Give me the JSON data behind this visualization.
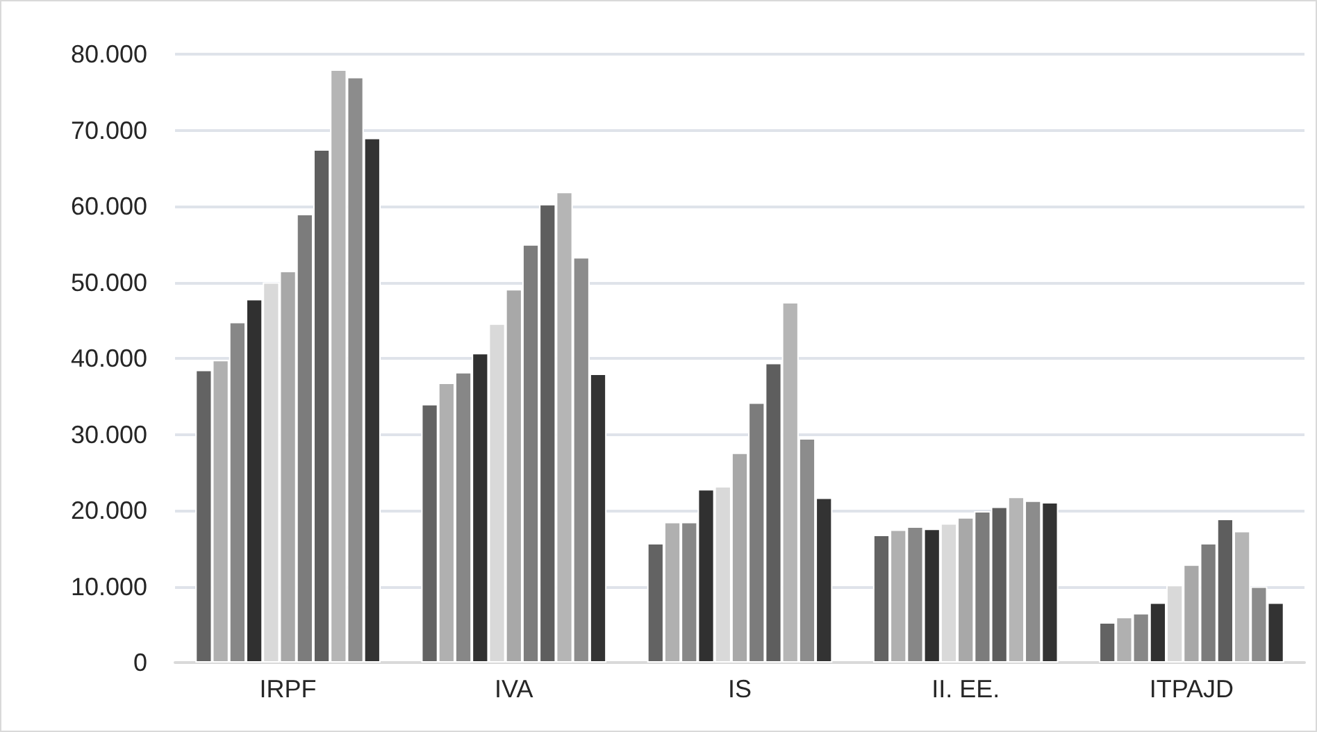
{
  "chart_data": {
    "type": "bar",
    "categories": [
      "IRPF",
      "IVA",
      "IS",
      "II. EE.",
      "ITPAJD"
    ],
    "series": [
      {
        "color": "#636363",
        "values": [
          38500,
          34000,
          15700,
          16800,
          5300
        ]
      },
      {
        "color": "#b0b0b0",
        "values": [
          39800,
          36800,
          18500,
          17500,
          6000
        ]
      },
      {
        "color": "#878787",
        "values": [
          44800,
          38200,
          18500,
          17900,
          6500
        ]
      },
      {
        "color": "#303030",
        "values": [
          47800,
          40700,
          22800,
          17600,
          7900
        ]
      },
      {
        "color": "#d9d9d9",
        "values": [
          50000,
          44600,
          23200,
          18300,
          10200
        ]
      },
      {
        "color": "#a8a8a8",
        "values": [
          51500,
          49100,
          27600,
          19100,
          12900
        ]
      },
      {
        "color": "#7c7c7c",
        "values": [
          59000,
          55000,
          34200,
          19900,
          15700
        ]
      },
      {
        "color": "#5e5e5e",
        "values": [
          67500,
          60300,
          39400,
          20500,
          18900
        ]
      },
      {
        "color": "#b5b5b5",
        "values": [
          78000,
          61900,
          47400,
          21800,
          17300
        ]
      },
      {
        "color": "#8c8c8c",
        "values": [
          77000,
          53300,
          29500,
          21300,
          10000
        ]
      },
      {
        "color": "#333333",
        "values": [
          69000,
          38000,
          21700,
          21100,
          7900
        ]
      }
    ],
    "ylim": [
      0,
      80000
    ],
    "yticks": [
      0,
      {
        "value": 10000,
        "label": "10.000"
      },
      {
        "value": 20000,
        "label": "20.000"
      },
      {
        "value": 30000,
        "label": "30.000"
      },
      {
        "value": 40000,
        "label": "40.000"
      },
      {
        "value": 50000,
        "label": "50.000"
      },
      {
        "value": 60000,
        "label": "60.000"
      },
      {
        "value": 70000,
        "label": "70.000"
      },
      {
        "value": 80000,
        "label": "80.000"
      }
    ],
    "grid": "y"
  }
}
